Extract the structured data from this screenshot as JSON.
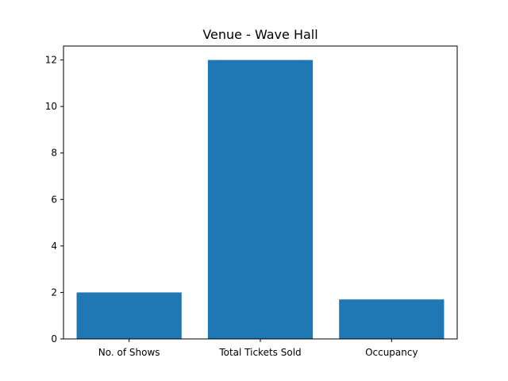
{
  "chart_data": {
    "type": "bar",
    "title": "Venue - Wave Hall",
    "xlabel": "",
    "ylabel": "",
    "categories": [
      "No. of Shows",
      "Total Tickets Sold",
      "Occupancy"
    ],
    "values": [
      2,
      12,
      1.7
    ],
    "ylim": [
      0,
      12.6
    ],
    "yticks": [
      "0",
      "2",
      "4",
      "6",
      "8",
      "10",
      "12"
    ],
    "bar_color": "#1f77b4",
    "grid": false,
    "legend": "none"
  }
}
